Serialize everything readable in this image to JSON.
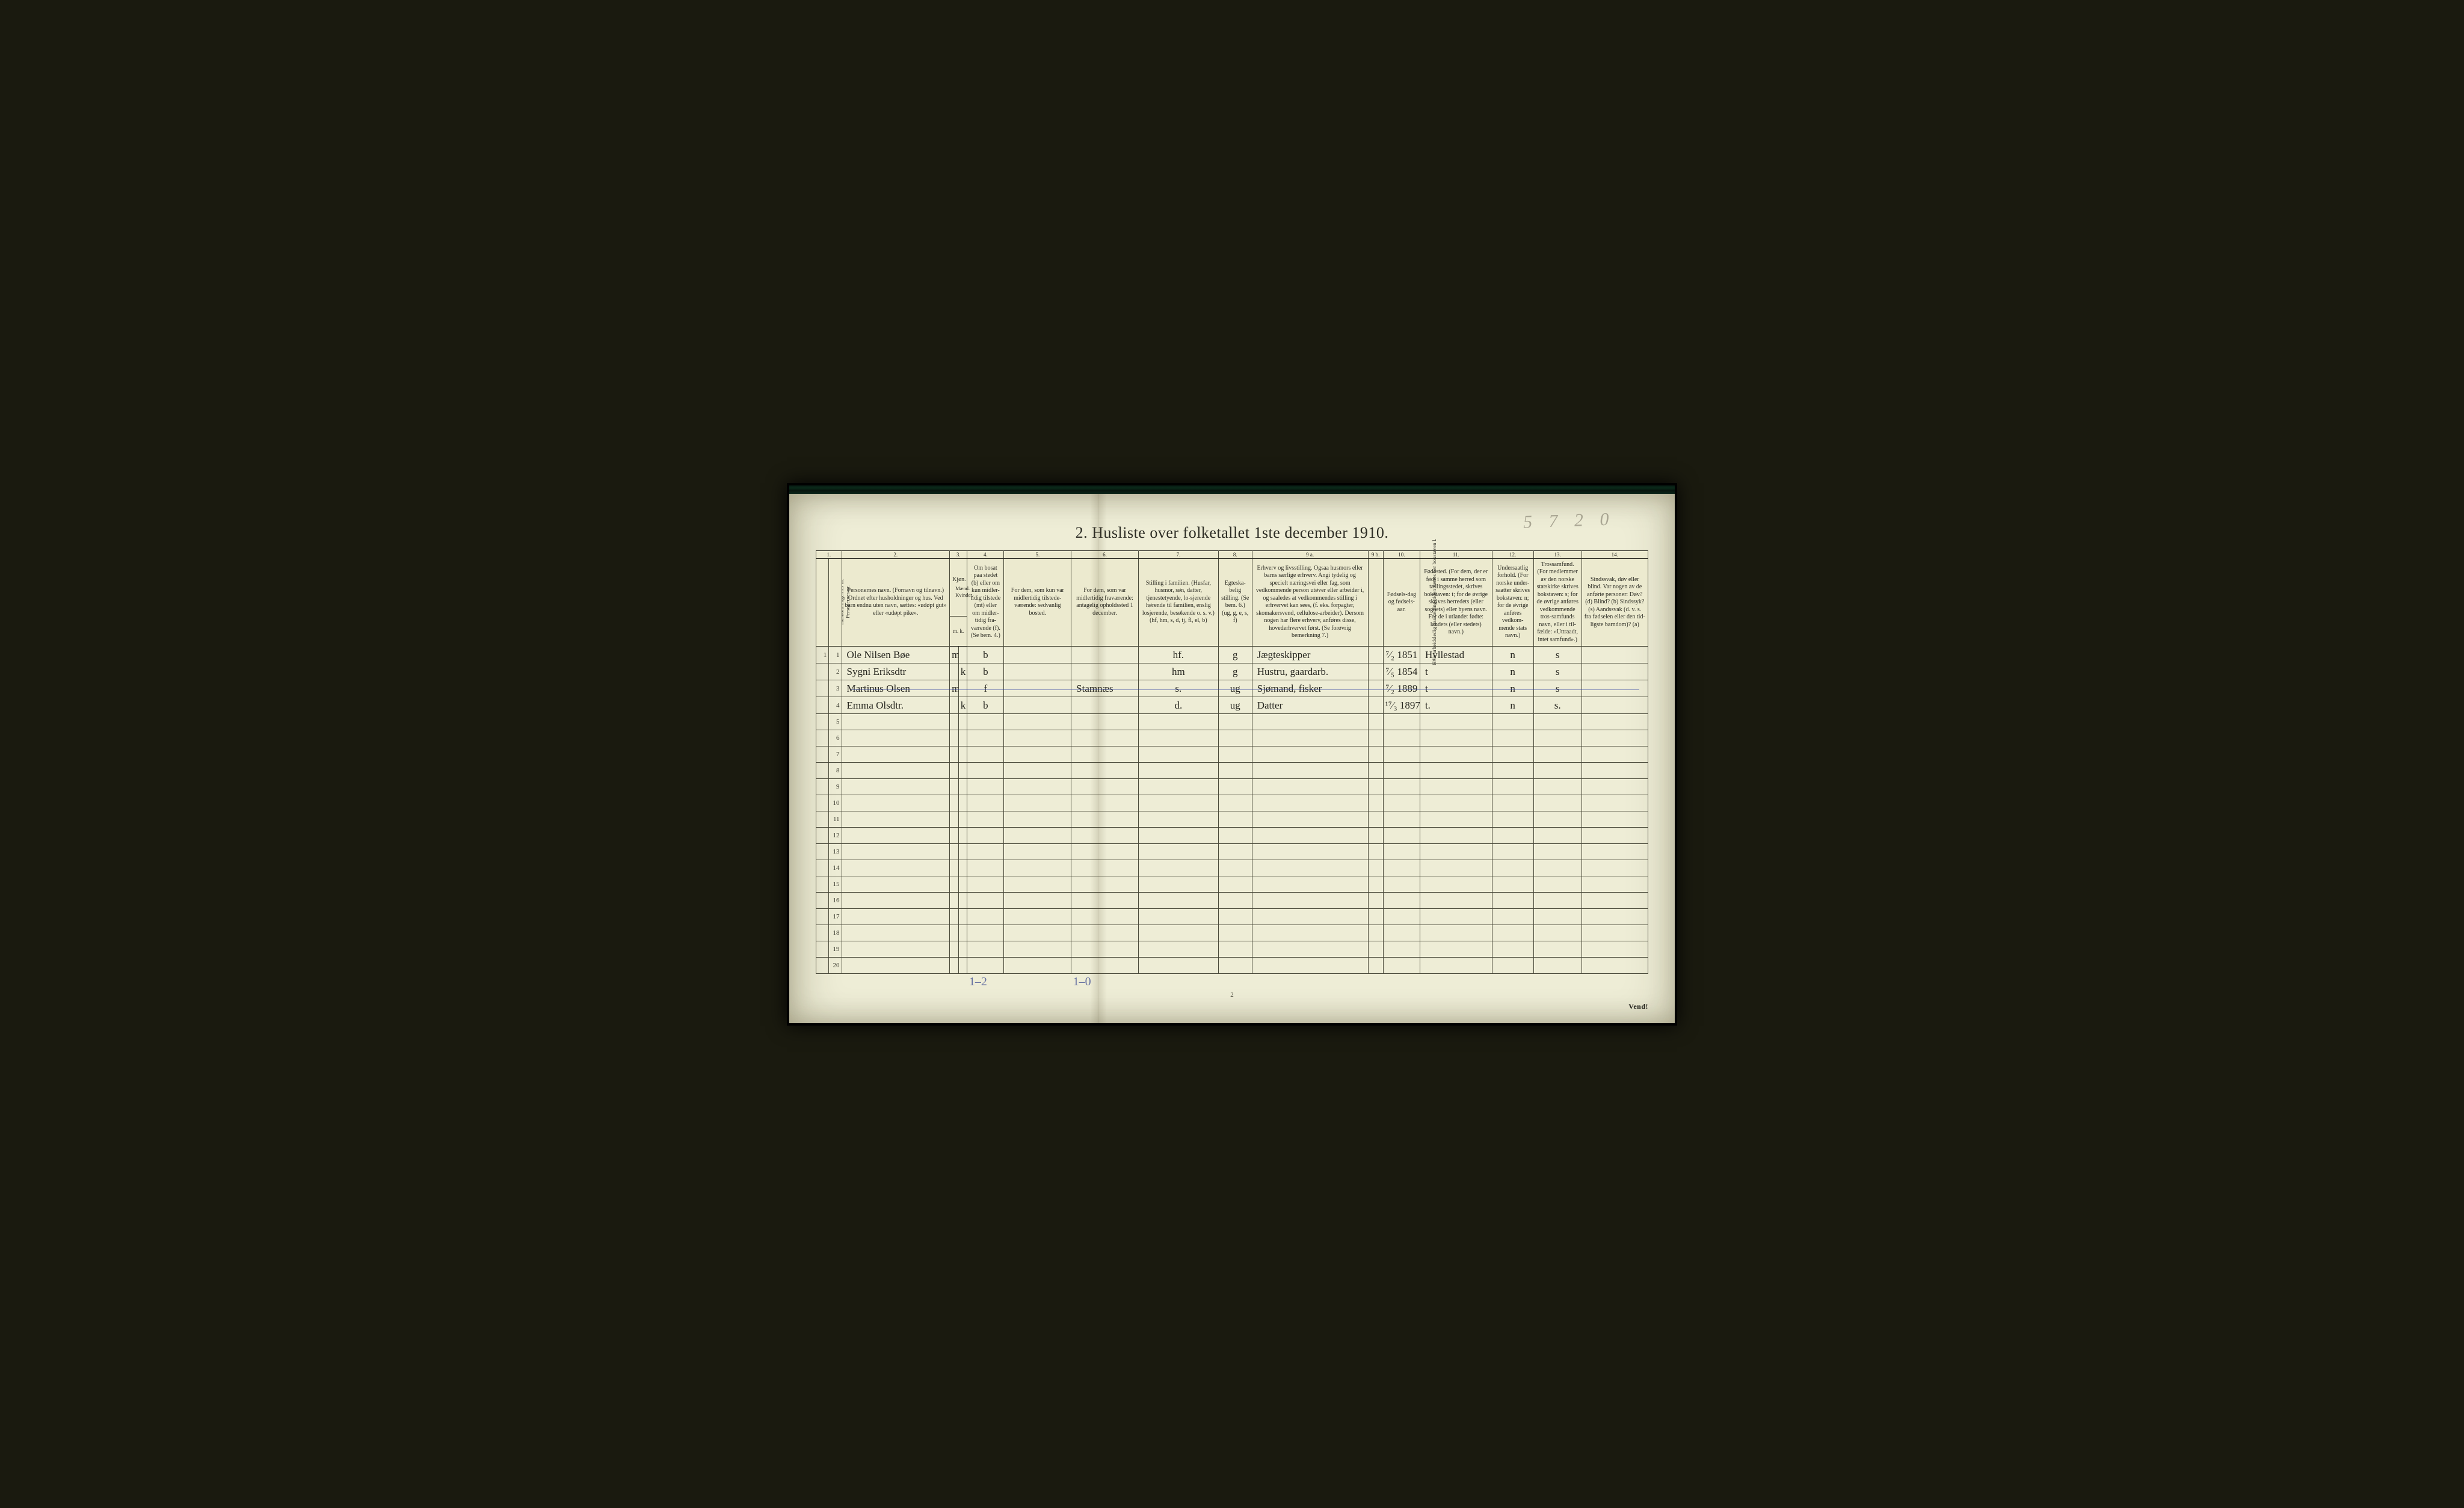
{
  "pencil_topright": "5 7 2 0",
  "title": "2.  Husliste over folketallet 1ste december 1910.",
  "colors": {
    "page_bg": "#eeedd6",
    "ink": "#2c2c24",
    "frame_bg": "#000000",
    "scan_bar": "#0a2a1a",
    "pencil_blue": "#2a3a8a",
    "pencil_gray": "rgba(90,85,70,0.45)"
  },
  "column_numbers": [
    "1.",
    "2.",
    "3.",
    "4.",
    "5.",
    "6.",
    "7.",
    "8.",
    "9 a.",
    "9 b.",
    "10.",
    "11.",
    "12.",
    "13.",
    "14."
  ],
  "headers": {
    "c1a": "Husholdningernes nr.",
    "c1b": "Personernes nr.",
    "c2": "Personernes navn.\n(Fornavn og tilnavn.)\nOrdnet efter husholdninger og hus.\nVed barn endnu uten navn, sættes: «udøpt gut» eller «udøpt pike».",
    "c3": "Kjøn.",
    "c3a": "Mænd.",
    "c3b": "Kvinder.",
    "c3sub": "m.  k.",
    "c4": "Om bosat paa stedet (b) eller om kun midler-tidig tilstede (mt) eller om midler-tidig fra-værende (f).  (Se bem. 4.)",
    "c5": "For dem, som kun var midlertidig tilstede-værende:\nsedvanlig bosted.",
    "c6": "For dem, som var midlertidig fraværende:\nantagelig opholdssted 1 december.",
    "c7": "Stilling i familien.\n(Husfar, husmor, søn, datter, tjenestetyende, lo-sjerende hørende til familien, enslig losjerende, besøkende o. s. v.)\n(hf, hm, s, d, tj, fl, el, b)",
    "c8": "Egteska-belig stilling.\n(Se bem. 6.)\n(ug, g, e, s, f)",
    "c9a": "Erhverv og livsstilling.\nOgsaa husmors eller barns særlige erhverv. Angi tydelig og specielt næringsvei eller fag, som vedkommende person utøver eller arbeider i, og saaledes at vedkommendes stilling i erhvervet kan sees, (f. eks. forpagter, skomakersvend, cellulose-arbeider). Dersom nogen har flere erhverv, anføres disse, hovederhvervet først. (Se forøvrig bemerkning 7.)",
    "c9b": "Hvis arbeidsledig paa tællingstiden sættes her bokstaven l.",
    "c10": "Fødsels-dag og fødsels-aar.",
    "c11": "Fødested.\n(For dem, der er født i samme herred som tællingsstedet, skrives bokstaven: t; for de øvrige skrives herredets (eller sognets) eller byens navn. For de i utlandet fødte: landets (eller stedets) navn.)",
    "c12": "Undersaatlig forhold.\n(For norske under-saatter skrives bokstaven: n; for de øvrige anføres vedkom-mende stats navn.)",
    "c13": "Trossamfund.\n(For medlemmer av den norske statskirke skrives bokstaven: s; for de øvrige anføres vedkommende tros-samfunds navn, eller i til-fælde: «Uttraadt, intet samfund».)",
    "c14": "Sindssvak, døv eller blind.\nVar nogen av de anførte personer:\nDøv?    (d)\nBlind?   (b)\nSindssyk? (s)\nAandssvak (d. v. s. fra fødselen eller den tid-ligste barndom)?  (a)"
  },
  "col_widths_pct": [
    1.6,
    1.6,
    13.5,
    1.1,
    1.1,
    4.6,
    8.4,
    8.4,
    10.0,
    4.2,
    14.5,
    1.9,
    4.6,
    9.0,
    5.2,
    6.0,
    8.3
  ],
  "num_body_rows": 20,
  "rows": [
    {
      "hh": "1",
      "pn": "1",
      "name": "Ole Nilsen Bøe",
      "sex_m": "m",
      "sex_k": "",
      "bosat": "b",
      "mt_sted": "",
      "f_sted": "",
      "fam": "hf.",
      "egte": "g",
      "erhverv": "Jægteskipper",
      "ledig": "",
      "fdato": "⁷⁄₂ 1851",
      "fsted": "Hyllestad",
      "und": "n",
      "tros": "s",
      "svak": ""
    },
    {
      "hh": "",
      "pn": "2",
      "name": "Sygni Eriksdtr",
      "sex_m": "",
      "sex_k": "k",
      "bosat": "b",
      "mt_sted": "",
      "f_sted": "",
      "fam": "hm",
      "egte": "g",
      "erhverv": "Hustru, gaardarb.",
      "ledig": "",
      "fdato": "⁷⁄₅ 1854",
      "fsted": "t",
      "und": "n",
      "tros": "s",
      "svak": ""
    },
    {
      "hh": "",
      "pn": "3",
      "name": "Martinus Olsen",
      "sex_m": "m",
      "sex_k": "",
      "bosat": "f",
      "mt_sted": "",
      "f_sted": "Stamnæs",
      "fam": "s.",
      "egte": "ug",
      "erhverv": "Sjømand, fisker",
      "ledig": "",
      "fdato": "⁷⁄₂ 1889",
      "fsted": "t",
      "und": "n",
      "tros": "s",
      "svak": ""
    },
    {
      "hh": "",
      "pn": "4",
      "name": "Emma Olsdtr.",
      "sex_m": "",
      "sex_k": "k",
      "bosat": "b",
      "mt_sted": "",
      "f_sted": "",
      "fam": "d.",
      "egte": "ug",
      "erhverv": "Datter",
      "ledig": "",
      "fdato": "¹⁷⁄₃ 1897",
      "fsted": "t.",
      "und": "n",
      "tros": "s.",
      "svak": ""
    }
  ],
  "pencil_tallies": {
    "col4": "1–2",
    "col6": "1–0"
  },
  "footer_page": "2",
  "vend": "Vend!",
  "blue_line_offset_row": 3
}
